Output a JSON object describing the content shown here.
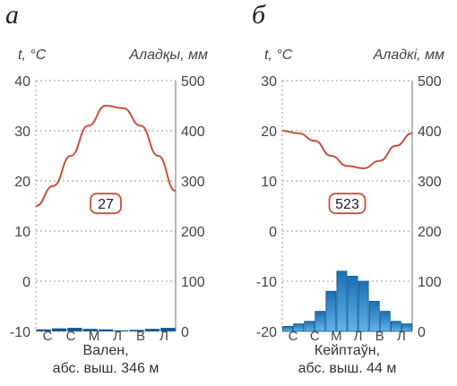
{
  "chart_data": [
    {
      "type": "climate",
      "panel_label": "а",
      "y_left_label": "t, °C",
      "y_right_label": "Аладқы, мм",
      "y_left_ticks": [
        "40",
        "30",
        "20",
        "10",
        "0",
        "-10"
      ],
      "y_right_ticks": [
        "500",
        "400",
        "300",
        "200",
        "100",
        "0"
      ],
      "y_left_lim": [
        -10,
        40
      ],
      "y_right_lim": [
        0,
        500
      ],
      "month_labels": [
        "С",
        "С",
        "М",
        "Л",
        "В",
        "Л"
      ],
      "temperature": [
        15,
        19,
        25,
        31,
        35,
        34.5,
        31,
        25,
        18
      ],
      "precipitation": [
        4,
        6,
        7,
        5,
        4,
        2,
        3,
        5,
        7
      ],
      "badge": "27",
      "station_name": "Вален,",
      "station_elevation": "абс. выш. 346 м"
    },
    {
      "type": "climate",
      "panel_label": "б",
      "y_left_label": "t, °C",
      "y_right_label": "Аладкі, мм",
      "y_left_ticks": [
        "30",
        "20",
        "10",
        "0",
        "-10",
        "-20"
      ],
      "y_right_ticks": [
        "500",
        "400",
        "300",
        "200",
        "100",
        "0"
      ],
      "y_left_lim": [
        -20,
        30
      ],
      "y_right_lim": [
        0,
        500
      ],
      "month_labels": [
        "С",
        "С",
        "М",
        "Л",
        "В",
        "Л"
      ],
      "temperature": [
        20,
        19.5,
        18,
        15,
        13,
        12.5,
        14,
        17,
        19.5
      ],
      "precipitation": [
        10,
        15,
        20,
        40,
        80,
        120,
        110,
        100,
        60,
        40,
        20,
        15
      ],
      "badge": "523",
      "station_name": "Кейптаўн,",
      "station_elevation": "абс. выш. 44 м"
    }
  ],
  "colors": {
    "temperature": "#c9503a",
    "precip_fill": "#2a8ccc",
    "precip_dark": "#0f5a95",
    "gridline": "#9a9a9a",
    "badge_border": "#c9503a"
  }
}
